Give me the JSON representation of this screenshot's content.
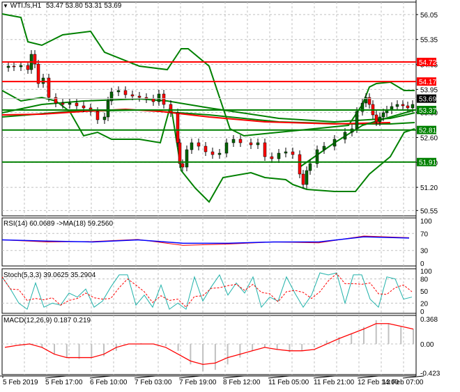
{
  "header": {
    "symbol_label": "WTI.fs,H1",
    "ohlc": "53.47 53.80 53.31 53.69",
    "open": 53.47,
    "high": 53.8,
    "low": 53.31,
    "close": 53.69
  },
  "price_axis": {
    "ticks": [
      "56.05",
      "55.35",
      "54.65",
      "53.95",
      "53.30",
      "52.60",
      "51.90",
      "51.20",
      "50.55"
    ],
    "tick_values": [
      56.05,
      55.35,
      54.65,
      53.95,
      53.3,
      52.6,
      51.9,
      51.2,
      50.55
    ],
    "current_price": "53.69",
    "levels": [
      {
        "label": "54.72",
        "value": 54.72,
        "color": "#ff0000"
      },
      {
        "label": "54.17",
        "value": 54.17,
        "color": "#ff0000"
      },
      {
        "label": "53.37",
        "value": 53.37,
        "color": "#008000"
      },
      {
        "label": "52.81",
        "value": 52.81,
        "color": "#008000"
      },
      {
        "label": "51.91",
        "value": 51.91,
        "color": "#008000"
      }
    ]
  },
  "time_axis": {
    "ticks": [
      "5 Feb 2019",
      "5 Feb 17:00",
      "6 Feb 10:00",
      "7 Feb 03:00",
      "7 Feb 19:00",
      "8 Feb 12:00",
      "11 Feb 05:00",
      "11 Feb 21:00",
      "12 Feb 14:00",
      "13 Feb 07:00"
    ]
  },
  "rsi": {
    "label": "RSI(14) 60.0689  ->MA(18) 59.2560",
    "ticks": [
      "100",
      "70",
      "30",
      "0"
    ]
  },
  "stoch": {
    "label": "Stoch(5,3,3) 39.0625 35.2904",
    "ticks": [
      "100",
      "80",
      "50",
      "20",
      "0"
    ]
  },
  "macd": {
    "label": "MACD(12,26,9) 0.187 0.219",
    "ticks": [
      "0.368",
      "0.00",
      "-0.423"
    ]
  },
  "colors": {
    "bull_candle": "#006400",
    "bear_candle": "#ff0000",
    "support": "#008000",
    "resistance": "#ff0000",
    "bollinger": "#008000",
    "rsi_line": "#ff0000",
    "rsi_ma": "#0000ff",
    "stoch_main": "#20b2aa",
    "stoch_signal": "#ff0000",
    "macd_signal": "#ff0000",
    "macd_hist": "#c0c0c0"
  },
  "chart_data": [
    {
      "type": "candlestick",
      "title": "WTI.fs,H1",
      "xlabel": "",
      "ylabel": "Price",
      "ylim": [
        50.55,
        56.4
      ],
      "categories": [
        "5 Feb 2019",
        "5 Feb 17:00",
        "6 Feb 10:00",
        "7 Feb 03:00",
        "7 Feb 19:00",
        "8 Feb 12:00",
        "11 Feb 05:00",
        "11 Feb 21:00",
        "12 Feb 14:00",
        "13 Feb 07:00"
      ],
      "series": [
        {
          "name": "Close (approx. at tick times)",
          "values": [
            54.85,
            53.9,
            53.65,
            53.8,
            52.5,
            52.6,
            52.2,
            52.95,
            53.6,
            53.69
          ]
        },
        {
          "name": "Last bar OHLC",
          "values": [
            53.47,
            53.8,
            53.31,
            53.69
          ]
        }
      ],
      "horizontal_levels": [
        54.72,
        54.17,
        53.37,
        52.81,
        51.91
      ],
      "current_price": 53.69,
      "grid": true
    },
    {
      "type": "line",
      "title": "RSI(14) 60.0689 ->MA(18) 59.2560",
      "ylim": [
        0,
        100
      ],
      "categories": [
        "5 Feb 2019",
        "5 Feb 17:00",
        "6 Feb 10:00",
        "7 Feb 03:00",
        "7 Feb 19:00",
        "8 Feb 12:00",
        "11 Feb 05:00",
        "11 Feb 21:00",
        "12 Feb 14:00",
        "13 Feb 07:00"
      ],
      "series": [
        {
          "name": "RSI(14)",
          "values": [
            55,
            50,
            51,
            56,
            42,
            45,
            50,
            48,
            64,
            60.07
          ]
        },
        {
          "name": "MA(18)",
          "values": [
            55,
            52,
            50,
            55,
            47,
            47,
            50,
            50,
            62,
            59.26
          ]
        }
      ]
    },
    {
      "type": "line",
      "title": "Stoch(5,3,3) 39.0625 35.2904",
      "ylim": [
        0,
        100
      ],
      "categories": [
        "5 Feb 2019",
        "5 Feb 17:00",
        "6 Feb 10:00",
        "7 Feb 03:00",
        "7 Feb 19:00",
        "8 Feb 12:00",
        "11 Feb 05:00",
        "11 Feb 21:00",
        "12 Feb 14:00",
        "13 Feb 07:00"
      ],
      "series": [
        {
          "name": "%K",
          "values": [
            85,
            10,
            70,
            20,
            75,
            60,
            90,
            30,
            95,
            39.06
          ]
        },
        {
          "name": "%D",
          "values": [
            80,
            20,
            55,
            25,
            65,
            55,
            80,
            40,
            85,
            35.29
          ]
        }
      ]
    },
    {
      "type": "bar",
      "title": "MACD(12,26,9) 0.187 0.219",
      "ylim": [
        -0.423,
        0.368
      ],
      "categories": [
        "5 Feb 2019",
        "5 Feb 17:00",
        "6 Feb 10:00",
        "7 Feb 03:00",
        "7 Feb 19:00",
        "8 Feb 12:00",
        "11 Feb 05:00",
        "11 Feb 21:00",
        "12 Feb 14:00",
        "13 Feb 07:00"
      ],
      "series": [
        {
          "name": "MACD histogram",
          "values": [
            -0.02,
            0.0,
            -0.22,
            0.0,
            -0.03,
            -0.3,
            -0.4,
            -0.1,
            0.1,
            0.187
          ]
        },
        {
          "name": "Signal",
          "values": [
            -0.05,
            0.0,
            -0.2,
            0.0,
            0.0,
            -0.3,
            -0.15,
            -0.1,
            0.2,
            0.219
          ]
        }
      ]
    }
  ]
}
